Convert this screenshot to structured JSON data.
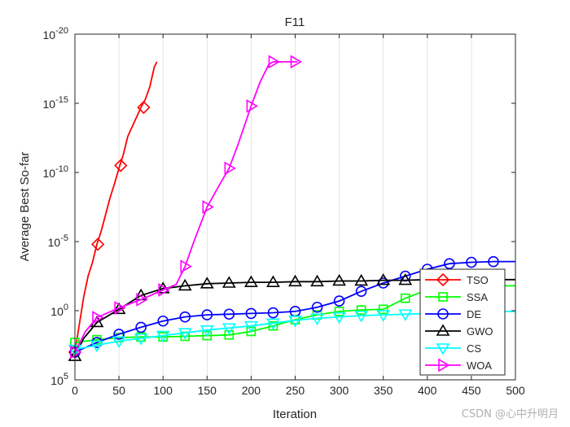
{
  "chart_data": {
    "type": "line",
    "title": "F11",
    "xlabel": "Iteration",
    "ylabel": "Average Best So-far",
    "y_scale": "log",
    "xlim": [
      0,
      500
    ],
    "ylim_exponent": [
      -20,
      5
    ],
    "x_ticks": [
      0,
      50,
      100,
      150,
      200,
      250,
      300,
      350,
      400,
      450,
      500
    ],
    "y_tick_exponents": [
      5,
      0,
      -5,
      -10,
      -15,
      -20
    ],
    "y_tick_base": "10",
    "grid": true,
    "minor_grid": true,
    "legend_position": "bottom-right",
    "series": [
      {
        "name": "TSO",
        "color": "#ff0000",
        "marker": "diamond",
        "x": [
          0,
          5,
          10,
          15,
          20,
          25,
          30,
          35,
          40,
          45,
          50,
          55,
          60,
          65,
          70,
          75,
          80,
          85,
          90,
          93
        ],
        "log10_y": [
          3.0,
          1.0,
          -1.0,
          -2.5,
          -3.5,
          -4.8,
          -5.8,
          -7.0,
          -8.2,
          -9.2,
          -10.3,
          -11.3,
          -12.6,
          -13.3,
          -14.0,
          -14.7,
          -15.3,
          -16.2,
          -17.6,
          -18.0
        ],
        "marker_x": [
          0,
          26,
          52,
          78
        ],
        "marker_log10_y": [
          3.0,
          -4.8,
          -10.5,
          -14.7
        ]
      },
      {
        "name": "SSA",
        "color": "#00ff00",
        "marker": "square",
        "x": [
          0,
          25,
          50,
          75,
          100,
          125,
          150,
          175,
          200,
          225,
          250,
          275,
          300,
          325,
          350,
          375,
          400,
          425,
          450,
          475,
          500
        ],
        "log10_y": [
          2.3,
          2.1,
          1.95,
          1.9,
          1.9,
          1.85,
          1.8,
          1.75,
          1.5,
          1.1,
          0.65,
          0.3,
          0.05,
          -0.05,
          -0.1,
          -0.9,
          -1.5,
          -1.75,
          -1.8,
          -1.8,
          -1.8
        ],
        "marker_x": [
          0,
          25,
          50,
          75,
          100,
          125,
          150,
          175,
          200,
          225,
          250,
          275,
          300,
          325,
          350,
          375,
          400,
          425,
          450,
          475
        ],
        "marker_log10_y": [
          2.3,
          2.1,
          1.95,
          1.9,
          1.9,
          1.85,
          1.8,
          1.75,
          1.5,
          1.1,
          0.65,
          0.3,
          0.05,
          -0.05,
          -0.1,
          -0.9,
          -1.5,
          -1.75,
          -1.8,
          -1.8
        ]
      },
      {
        "name": "DE",
        "color": "#0000ff",
        "marker": "circle",
        "x": [
          0,
          25,
          50,
          75,
          100,
          125,
          150,
          175,
          200,
          225,
          250,
          275,
          300,
          325,
          350,
          375,
          400,
          425,
          450,
          475,
          500
        ],
        "log10_y": [
          3.0,
          2.3,
          1.7,
          1.2,
          0.75,
          0.45,
          0.3,
          0.25,
          0.2,
          0.15,
          0.05,
          -0.25,
          -0.7,
          -1.4,
          -2.0,
          -2.5,
          -3.0,
          -3.4,
          -3.5,
          -3.55,
          -3.55
        ],
        "marker_x": [
          0,
          25,
          50,
          75,
          100,
          125,
          150,
          175,
          200,
          225,
          250,
          275,
          300,
          325,
          350,
          375,
          400,
          425,
          450,
          475
        ],
        "marker_log10_y": [
          3.0,
          2.3,
          1.7,
          1.2,
          0.75,
          0.45,
          0.3,
          0.25,
          0.2,
          0.15,
          0.05,
          -0.25,
          -0.7,
          -1.4,
          -2.0,
          -2.5,
          -3.0,
          -3.4,
          -3.5,
          -3.55
        ]
      },
      {
        "name": "GWO",
        "color": "#000000",
        "marker": "triangle-up",
        "x": [
          0,
          10,
          25,
          50,
          75,
          100,
          125,
          150,
          175,
          200,
          225,
          250,
          275,
          300,
          325,
          350,
          375,
          400,
          425,
          450,
          475,
          500
        ],
        "log10_y": [
          3.3,
          2.0,
          0.85,
          -0.1,
          -1.1,
          -1.6,
          -1.8,
          -1.95,
          -2.0,
          -2.05,
          -2.05,
          -2.1,
          -2.1,
          -2.15,
          -2.15,
          -2.2,
          -2.2,
          -2.25,
          -2.25,
          -2.25,
          -2.25,
          -2.25
        ],
        "marker_x": [
          0,
          25,
          50,
          75,
          100,
          125,
          150,
          175,
          200,
          225,
          250,
          275,
          300,
          325,
          350,
          375,
          400,
          425,
          450,
          475
        ],
        "marker_log10_y": [
          3.3,
          0.85,
          -0.1,
          -1.1,
          -1.6,
          -1.8,
          -1.95,
          -2.0,
          -2.05,
          -2.05,
          -2.1,
          -2.1,
          -2.15,
          -2.15,
          -2.2,
          -2.2,
          -2.25,
          -2.25,
          -2.25,
          -2.25
        ]
      },
      {
        "name": "CS",
        "color": "#00ffff",
        "marker": "triangle-down",
        "x": [
          0,
          25,
          50,
          75,
          100,
          125,
          150,
          175,
          200,
          225,
          250,
          275,
          300,
          325,
          350,
          375,
          400,
          425,
          450,
          475,
          500
        ],
        "log10_y": [
          2.8,
          2.5,
          2.2,
          2.0,
          1.8,
          1.6,
          1.4,
          1.25,
          1.1,
          0.9,
          0.7,
          0.55,
          0.45,
          0.35,
          0.3,
          0.25,
          0.2,
          0.15,
          0.1,
          0.05,
          0.05
        ],
        "marker_x": [
          0,
          25,
          50,
          75,
          100,
          125,
          150,
          175,
          200,
          225,
          250,
          275,
          300,
          325,
          350,
          375,
          400,
          425,
          450,
          475
        ],
        "marker_log10_y": [
          2.8,
          2.5,
          2.2,
          2.0,
          1.8,
          1.6,
          1.4,
          1.25,
          1.1,
          0.9,
          0.7,
          0.55,
          0.45,
          0.35,
          0.3,
          0.25,
          0.2,
          0.15,
          0.1,
          0.05
        ]
      },
      {
        "name": "WOA",
        "color": "#ff00ff",
        "marker": "triangle-right",
        "x": [
          0,
          12,
          25,
          50,
          75,
          100,
          115,
          125,
          135,
          150,
          165,
          175,
          185,
          200,
          210,
          220,
          225,
          250,
          253
        ],
        "log10_y": [
          3.0,
          1.5,
          0.5,
          -0.2,
          -0.8,
          -1.5,
          -1.9,
          -3.2,
          -5.0,
          -7.5,
          -9.2,
          -10.3,
          -12.0,
          -14.8,
          -16.5,
          -17.8,
          -18.0,
          -18.0,
          -18.0
        ],
        "marker_x": [
          0,
          25,
          50,
          75,
          100,
          125,
          150,
          175,
          200,
          225,
          250
        ],
        "marker_log10_y": [
          3.0,
          0.5,
          -0.2,
          -0.8,
          -1.5,
          -3.2,
          -7.5,
          -10.3,
          -14.8,
          -18.0,
          -18.0
        ]
      }
    ]
  },
  "watermark": "CSDN @心中升明月"
}
